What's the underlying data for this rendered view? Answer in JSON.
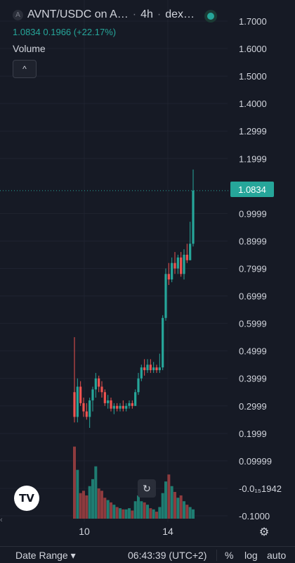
{
  "header": {
    "symbol_icon": "A",
    "symbol": "AVNT/USDC on A…",
    "interval": "4h",
    "exchange": "dex…",
    "separator": "·",
    "last_close": "1.0834",
    "change": "0.1966 (+22.17%)",
    "indicator_label": "Volume",
    "collapse_icon": "^"
  },
  "price_tag": "1.0834",
  "reset_icon": "↻",
  "settings_icon": "⚙",
  "logo_text": "TV",
  "left_arrow": "‹",
  "toolbar": {
    "date_range": "Date Range ▾",
    "clock": "06:43:39 (UTC+2)",
    "percent": "%",
    "log": "log",
    "auto": "auto"
  },
  "colors": {
    "up": "#26a69a",
    "down": "#ef5350",
    "volume_up": "#1f7d72",
    "volume_down": "#8e3b3e",
    "background": "#161a25",
    "grid": "#1f2330",
    "text": "#d1d4dc"
  },
  "chart_data": {
    "type": "candlestick",
    "y_ticks": [
      "1.7000",
      "1.6000",
      "1.5000",
      "1.4000",
      "1.2999",
      "1.1999",
      "0.9999",
      "0.8999",
      "0.7999",
      "0.6999",
      "0.5999",
      "0.4999",
      "0.3999",
      "0.2999",
      "0.1999",
      "0.09999",
      "-0.0₁₅1942",
      "-0.1000"
    ],
    "y_tick_values": [
      1.7,
      1.6,
      1.5,
      1.4,
      1.3,
      1.2,
      1.0,
      0.9,
      0.8,
      0.7,
      0.6,
      0.5,
      0.4,
      0.3,
      0.2,
      0.1,
      0.0,
      -0.1
    ],
    "x_ticks": [
      "10",
      "14"
    ],
    "ylim": [
      -0.1,
      1.7
    ],
    "last_price": 1.0834,
    "candles": [
      {
        "o": 0.35,
        "h": 0.55,
        "l": 0.24,
        "c": 0.26,
        "v": 0.62
      },
      {
        "o": 0.26,
        "h": 0.4,
        "l": 0.24,
        "c": 0.37,
        "v": 0.42
      },
      {
        "o": 0.37,
        "h": 0.39,
        "l": 0.3,
        "c": 0.31,
        "v": 0.22
      },
      {
        "o": 0.31,
        "h": 0.33,
        "l": 0.26,
        "c": 0.28,
        "v": 0.24
      },
      {
        "o": 0.28,
        "h": 0.31,
        "l": 0.25,
        "c": 0.26,
        "v": 0.2
      },
      {
        "o": 0.26,
        "h": 0.33,
        "l": 0.22,
        "c": 0.32,
        "v": 0.28
      },
      {
        "o": 0.32,
        "h": 0.37,
        "l": 0.28,
        "c": 0.36,
        "v": 0.34
      },
      {
        "o": 0.36,
        "h": 0.42,
        "l": 0.33,
        "c": 0.4,
        "v": 0.45
      },
      {
        "o": 0.4,
        "h": 0.41,
        "l": 0.35,
        "c": 0.37,
        "v": 0.26
      },
      {
        "o": 0.37,
        "h": 0.39,
        "l": 0.33,
        "c": 0.35,
        "v": 0.24
      },
      {
        "o": 0.35,
        "h": 0.36,
        "l": 0.3,
        "c": 0.31,
        "v": 0.18
      },
      {
        "o": 0.31,
        "h": 0.34,
        "l": 0.29,
        "c": 0.32,
        "v": 0.16
      },
      {
        "o": 0.32,
        "h": 0.33,
        "l": 0.28,
        "c": 0.29,
        "v": 0.14
      },
      {
        "o": 0.29,
        "h": 0.31,
        "l": 0.27,
        "c": 0.3,
        "v": 0.12
      },
      {
        "o": 0.3,
        "h": 0.31,
        "l": 0.28,
        "c": 0.29,
        "v": 0.1
      },
      {
        "o": 0.29,
        "h": 0.31,
        "l": 0.28,
        "c": 0.3,
        "v": 0.09
      },
      {
        "o": 0.3,
        "h": 0.32,
        "l": 0.28,
        "c": 0.29,
        "v": 0.08
      },
      {
        "o": 0.29,
        "h": 0.31,
        "l": 0.28,
        "c": 0.3,
        "v": 0.08
      },
      {
        "o": 0.3,
        "h": 0.32,
        "l": 0.29,
        "c": 0.31,
        "v": 0.09
      },
      {
        "o": 0.31,
        "h": 0.32,
        "l": 0.29,
        "c": 0.3,
        "v": 0.07
      },
      {
        "o": 0.3,
        "h": 0.36,
        "l": 0.3,
        "c": 0.35,
        "v": 0.15
      },
      {
        "o": 0.35,
        "h": 0.42,
        "l": 0.34,
        "c": 0.4,
        "v": 0.2
      },
      {
        "o": 0.4,
        "h": 0.45,
        "l": 0.39,
        "c": 0.44,
        "v": 0.15
      },
      {
        "o": 0.44,
        "h": 0.47,
        "l": 0.41,
        "c": 0.43,
        "v": 0.14
      },
      {
        "o": 0.43,
        "h": 0.47,
        "l": 0.42,
        "c": 0.45,
        "v": 0.12
      },
      {
        "o": 0.45,
        "h": 0.47,
        "l": 0.42,
        "c": 0.43,
        "v": 0.09
      },
      {
        "o": 0.43,
        "h": 0.46,
        "l": 0.42,
        "c": 0.44,
        "v": 0.08
      },
      {
        "o": 0.44,
        "h": 0.45,
        "l": 0.42,
        "c": 0.43,
        "v": 0.06
      },
      {
        "o": 0.43,
        "h": 0.49,
        "l": 0.42,
        "c": 0.44,
        "v": 0.1
      },
      {
        "o": 0.44,
        "h": 0.63,
        "l": 0.43,
        "c": 0.62,
        "v": 0.22
      },
      {
        "o": 0.62,
        "h": 0.8,
        "l": 0.61,
        "c": 0.78,
        "v": 0.32
      },
      {
        "o": 0.78,
        "h": 0.82,
        "l": 0.74,
        "c": 0.76,
        "v": 0.38
      },
      {
        "o": 0.76,
        "h": 0.84,
        "l": 0.75,
        "c": 0.82,
        "v": 0.28
      },
      {
        "o": 0.82,
        "h": 0.86,
        "l": 0.78,
        "c": 0.8,
        "v": 0.23
      },
      {
        "o": 0.8,
        "h": 0.85,
        "l": 0.78,
        "c": 0.84,
        "v": 0.18
      },
      {
        "o": 0.84,
        "h": 0.86,
        "l": 0.77,
        "c": 0.78,
        "v": 0.2
      },
      {
        "o": 0.78,
        "h": 0.87,
        "l": 0.76,
        "c": 0.85,
        "v": 0.15
      },
      {
        "o": 0.85,
        "h": 0.89,
        "l": 0.82,
        "c": 0.83,
        "v": 0.12
      },
      {
        "o": 0.83,
        "h": 0.97,
        "l": 0.83,
        "c": 0.89,
        "v": 0.1
      },
      {
        "o": 0.89,
        "h": 1.16,
        "l": 0.88,
        "c": 1.0834,
        "v": 0.08
      }
    ]
  }
}
